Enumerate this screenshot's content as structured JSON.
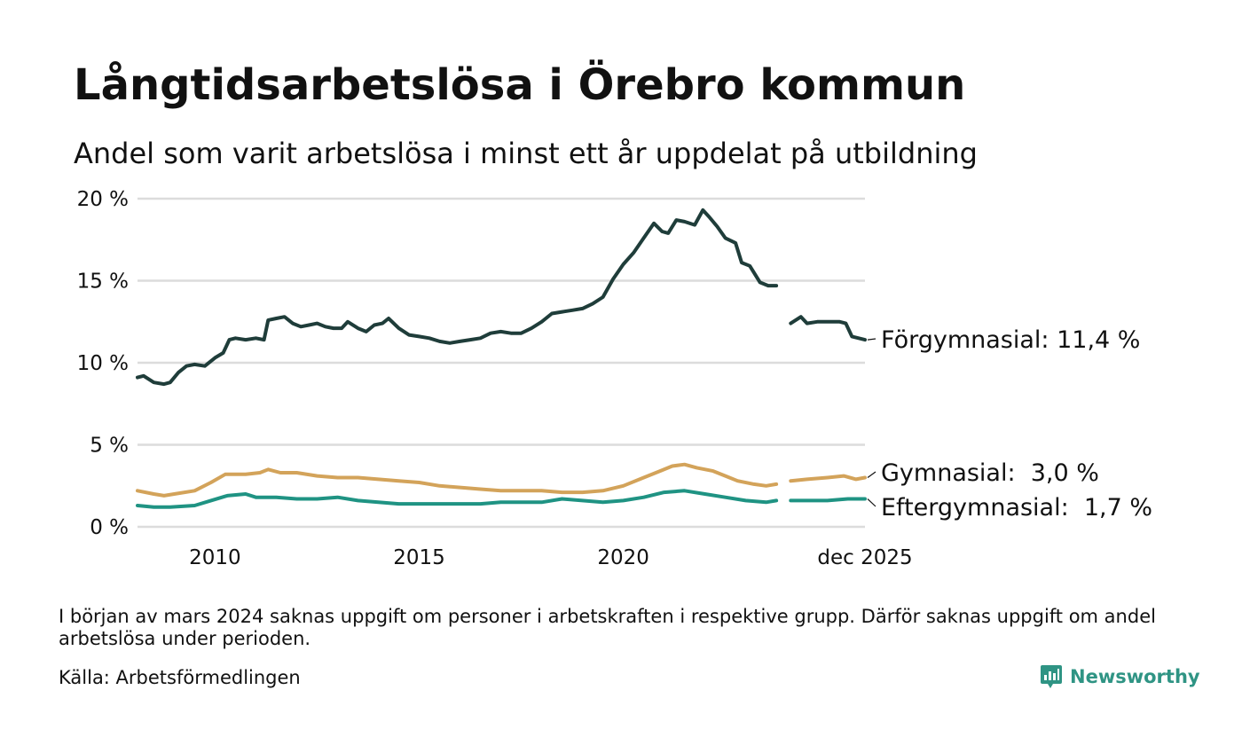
{
  "title": "Långtidsarbetslösa i Örebro kommun",
  "subtitle": "Andel som varit arbetslösa i minst ett år uppdelat på utbildning",
  "note": "I början av mars 2024 saknas uppgift om personer i arbetskraften i respektive grupp. Därför saknas uppgift om andel arbetslösa under perioden.",
  "source": "Källa: Arbetsförmedlingen",
  "brand": "Newsworthy",
  "chart_data": {
    "type": "line",
    "title": "Långtidsarbetslösa i Örebro kommun",
    "xlabel": "",
    "ylabel": "",
    "ylim": [
      0,
      20
    ],
    "xlim": [
      2008.1,
      2025.92
    ],
    "yticks": [
      0,
      5,
      10,
      15,
      20
    ],
    "ytick_labels": [
      "0 %",
      "5 %",
      "10 %",
      "15 %",
      "20 %"
    ],
    "xticks": [
      2010,
      2015,
      2020,
      2025.92
    ],
    "xtick_labels": [
      "2010",
      "2015",
      "2020",
      "dec 2025"
    ],
    "grid": true,
    "gap": [
      2023.75,
      2024.1
    ],
    "series": [
      {
        "name": "Förgymnasial",
        "label": "Förgymnasial: 11,4 %",
        "color": "#1f3d3a",
        "points": [
          [
            2008.1,
            9.1
          ],
          [
            2008.25,
            9.2
          ],
          [
            2008.5,
            8.8
          ],
          [
            2008.75,
            8.7
          ],
          [
            2008.9,
            8.8
          ],
          [
            2009.1,
            9.4
          ],
          [
            2009.3,
            9.8
          ],
          [
            2009.5,
            9.9
          ],
          [
            2009.75,
            9.8
          ],
          [
            2010.0,
            10.3
          ],
          [
            2010.2,
            10.6
          ],
          [
            2010.35,
            11.4
          ],
          [
            2010.5,
            11.5
          ],
          [
            2010.75,
            11.4
          ],
          [
            2011.0,
            11.5
          ],
          [
            2011.2,
            11.4
          ],
          [
            2011.3,
            12.6
          ],
          [
            2011.5,
            12.7
          ],
          [
            2011.7,
            12.8
          ],
          [
            2011.9,
            12.4
          ],
          [
            2012.1,
            12.2
          ],
          [
            2012.3,
            12.3
          ],
          [
            2012.5,
            12.4
          ],
          [
            2012.7,
            12.2
          ],
          [
            2012.9,
            12.1
          ],
          [
            2013.1,
            12.1
          ],
          [
            2013.25,
            12.5
          ],
          [
            2013.5,
            12.1
          ],
          [
            2013.7,
            11.9
          ],
          [
            2013.9,
            12.3
          ],
          [
            2014.1,
            12.4
          ],
          [
            2014.25,
            12.7
          ],
          [
            2014.5,
            12.1
          ],
          [
            2014.75,
            11.7
          ],
          [
            2015.0,
            11.6
          ],
          [
            2015.25,
            11.5
          ],
          [
            2015.5,
            11.3
          ],
          [
            2015.75,
            11.2
          ],
          [
            2016.0,
            11.3
          ],
          [
            2016.25,
            11.4
          ],
          [
            2016.5,
            11.5
          ],
          [
            2016.75,
            11.8
          ],
          [
            2017.0,
            11.9
          ],
          [
            2017.25,
            11.8
          ],
          [
            2017.5,
            11.8
          ],
          [
            2017.75,
            12.1
          ],
          [
            2018.0,
            12.5
          ],
          [
            2018.25,
            13.0
          ],
          [
            2018.5,
            13.1
          ],
          [
            2018.75,
            13.2
          ],
          [
            2019.0,
            13.3
          ],
          [
            2019.25,
            13.6
          ],
          [
            2019.5,
            14.0
          ],
          [
            2019.75,
            15.1
          ],
          [
            2020.0,
            16.0
          ],
          [
            2020.25,
            16.7
          ],
          [
            2020.5,
            17.6
          ],
          [
            2020.75,
            18.5
          ],
          [
            2020.95,
            18.0
          ],
          [
            2021.1,
            17.9
          ],
          [
            2021.3,
            18.7
          ],
          [
            2021.5,
            18.6
          ],
          [
            2021.75,
            18.4
          ],
          [
            2021.95,
            19.3
          ],
          [
            2022.1,
            18.9
          ],
          [
            2022.3,
            18.3
          ],
          [
            2022.5,
            17.6
          ],
          [
            2022.75,
            17.3
          ],
          [
            2022.9,
            16.1
          ],
          [
            2023.1,
            15.9
          ],
          [
            2023.35,
            14.9
          ],
          [
            2023.55,
            14.7
          ],
          [
            2023.75,
            14.7
          ],
          [
            2024.1,
            12.4
          ],
          [
            2024.35,
            12.8
          ],
          [
            2024.5,
            12.4
          ],
          [
            2024.75,
            12.5
          ],
          [
            2025.0,
            12.5
          ],
          [
            2025.3,
            12.5
          ],
          [
            2025.45,
            12.4
          ],
          [
            2025.6,
            11.6
          ],
          [
            2025.92,
            11.4
          ]
        ]
      },
      {
        "name": "Gymnasial",
        "label": "Gymnasial:  3,0 %",
        "color": "#d3a35a",
        "points": [
          [
            2008.1,
            2.2
          ],
          [
            2008.5,
            2.0
          ],
          [
            2008.75,
            1.9
          ],
          [
            2009.0,
            2.0
          ],
          [
            2009.5,
            2.2
          ],
          [
            2009.9,
            2.7
          ],
          [
            2010.25,
            3.2
          ],
          [
            2010.75,
            3.2
          ],
          [
            2011.1,
            3.3
          ],
          [
            2011.3,
            3.5
          ],
          [
            2011.6,
            3.3
          ],
          [
            2012.0,
            3.3
          ],
          [
            2012.5,
            3.1
          ],
          [
            2013.0,
            3.0
          ],
          [
            2013.5,
            3.0
          ],
          [
            2014.0,
            2.9
          ],
          [
            2014.5,
            2.8
          ],
          [
            2015.0,
            2.7
          ],
          [
            2015.5,
            2.5
          ],
          [
            2016.0,
            2.4
          ],
          [
            2016.5,
            2.3
          ],
          [
            2017.0,
            2.2
          ],
          [
            2017.5,
            2.2
          ],
          [
            2018.0,
            2.2
          ],
          [
            2018.5,
            2.1
          ],
          [
            2019.0,
            2.1
          ],
          [
            2019.5,
            2.2
          ],
          [
            2020.0,
            2.5
          ],
          [
            2020.5,
            3.0
          ],
          [
            2020.9,
            3.4
          ],
          [
            2021.2,
            3.7
          ],
          [
            2021.5,
            3.8
          ],
          [
            2021.8,
            3.6
          ],
          [
            2022.2,
            3.4
          ],
          [
            2022.5,
            3.1
          ],
          [
            2022.8,
            2.8
          ],
          [
            2023.2,
            2.6
          ],
          [
            2023.5,
            2.5
          ],
          [
            2023.75,
            2.6
          ],
          [
            2024.1,
            2.8
          ],
          [
            2024.5,
            2.9
          ],
          [
            2025.0,
            3.0
          ],
          [
            2025.4,
            3.1
          ],
          [
            2025.7,
            2.9
          ],
          [
            2025.92,
            3.0
          ]
        ]
      },
      {
        "name": "Eftergymnasial",
        "label": "Eftergymnasial:  1,7 %",
        "color": "#1f9383",
        "points": [
          [
            2008.1,
            1.3
          ],
          [
            2008.5,
            1.2
          ],
          [
            2008.9,
            1.2
          ],
          [
            2009.5,
            1.3
          ],
          [
            2009.9,
            1.6
          ],
          [
            2010.3,
            1.9
          ],
          [
            2010.75,
            2.0
          ],
          [
            2011.0,
            1.8
          ],
          [
            2011.5,
            1.8
          ],
          [
            2012.0,
            1.7
          ],
          [
            2012.5,
            1.7
          ],
          [
            2013.0,
            1.8
          ],
          [
            2013.5,
            1.6
          ],
          [
            2014.0,
            1.5
          ],
          [
            2014.5,
            1.4
          ],
          [
            2015.0,
            1.4
          ],
          [
            2015.5,
            1.4
          ],
          [
            2016.0,
            1.4
          ],
          [
            2016.5,
            1.4
          ],
          [
            2017.0,
            1.5
          ],
          [
            2017.5,
            1.5
          ],
          [
            2018.0,
            1.5
          ],
          [
            2018.5,
            1.7
          ],
          [
            2019.0,
            1.6
          ],
          [
            2019.5,
            1.5
          ],
          [
            2020.0,
            1.6
          ],
          [
            2020.5,
            1.8
          ],
          [
            2021.0,
            2.1
          ],
          [
            2021.5,
            2.2
          ],
          [
            2022.0,
            2.0
          ],
          [
            2022.5,
            1.8
          ],
          [
            2023.0,
            1.6
          ],
          [
            2023.5,
            1.5
          ],
          [
            2023.75,
            1.6
          ],
          [
            2024.1,
            1.6
          ],
          [
            2024.5,
            1.6
          ],
          [
            2025.0,
            1.6
          ],
          [
            2025.5,
            1.7
          ],
          [
            2025.92,
            1.7
          ]
        ]
      }
    ]
  }
}
